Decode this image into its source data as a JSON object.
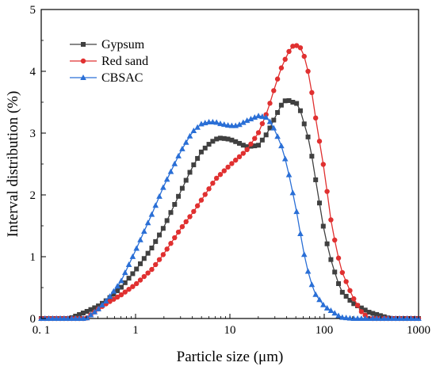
{
  "chart_data": {
    "type": "line",
    "title": "",
    "xlabel": "Particle size (μm)",
    "ylabel": "Interval distribution (%)",
    "x_scale": "log",
    "xlim": [
      0.1,
      1000
    ],
    "ylim": [
      0,
      5
    ],
    "x_ticks": [
      0.1,
      1,
      10,
      100,
      1000
    ],
    "x_tick_labels": [
      "0. 1",
      "1",
      "10",
      "100",
      "1000"
    ],
    "y_ticks": [
      0,
      1,
      2,
      3,
      4,
      5
    ],
    "y_tick_labels": [
      "0",
      "1",
      "2",
      "3",
      "4",
      "5"
    ],
    "grid": false,
    "legend_position": "top-left",
    "series": [
      {
        "name": "Gypsum",
        "color": "#404040",
        "marker": "square",
        "x": [
          0.1,
          0.2,
          0.25,
          0.3,
          0.4,
          0.5,
          0.7,
          1,
          1.5,
          2,
          3,
          4,
          5,
          6,
          7,
          8,
          10,
          12,
          15,
          20,
          25,
          30,
          35,
          40,
          45,
          50,
          55,
          60,
          70,
          80,
          100,
          120,
          150,
          200,
          300,
          500,
          1000
        ],
        "y": [
          0,
          0,
          0.06,
          0.11,
          0.2,
          0.3,
          0.5,
          0.78,
          1.15,
          1.48,
          2.05,
          2.45,
          2.7,
          2.82,
          2.9,
          2.92,
          2.9,
          2.85,
          2.78,
          2.8,
          3.0,
          3.25,
          3.45,
          3.55,
          3.5,
          3.5,
          3.4,
          3.2,
          2.85,
          2.3,
          1.4,
          0.9,
          0.45,
          0.25,
          0.1,
          0,
          0
        ]
      },
      {
        "name": "Red sand",
        "color": "#e03030",
        "marker": "circle",
        "x": [
          0.1,
          0.3,
          0.4,
          0.5,
          0.7,
          1,
          1.5,
          2,
          3,
          4,
          5,
          7,
          10,
          15,
          20,
          25,
          30,
          35,
          40,
          45,
          50,
          55,
          60,
          70,
          80,
          100,
          120,
          150,
          200,
          250,
          300,
          1000
        ],
        "y": [
          0,
          0,
          0.15,
          0.25,
          0.38,
          0.55,
          0.8,
          1.05,
          1.45,
          1.7,
          1.92,
          2.25,
          2.48,
          2.72,
          3.0,
          3.35,
          3.75,
          4.05,
          4.25,
          4.4,
          4.42,
          4.4,
          4.3,
          3.9,
          3.3,
          2.4,
          1.5,
          0.8,
          0.35,
          0.1,
          0,
          0
        ]
      },
      {
        "name": "CBSAC",
        "color": "#2a6fd6",
        "marker": "triangle",
        "x": [
          0.1,
          0.3,
          0.4,
          0.5,
          0.7,
          1,
          1.5,
          2,
          3,
          4,
          5,
          6,
          7,
          8,
          10,
          12,
          15,
          20,
          25,
          30,
          35,
          40,
          50,
          60,
          70,
          80,
          100,
          150,
          200,
          1000
        ],
        "y": [
          0,
          0,
          0.15,
          0.3,
          0.6,
          1.1,
          1.7,
          2.15,
          2.7,
          3.02,
          3.15,
          3.18,
          3.18,
          3.15,
          3.12,
          3.12,
          3.2,
          3.28,
          3.25,
          3.05,
          2.8,
          2.5,
          1.8,
          1.1,
          0.65,
          0.4,
          0.2,
          0.02,
          0,
          0
        ]
      }
    ]
  }
}
